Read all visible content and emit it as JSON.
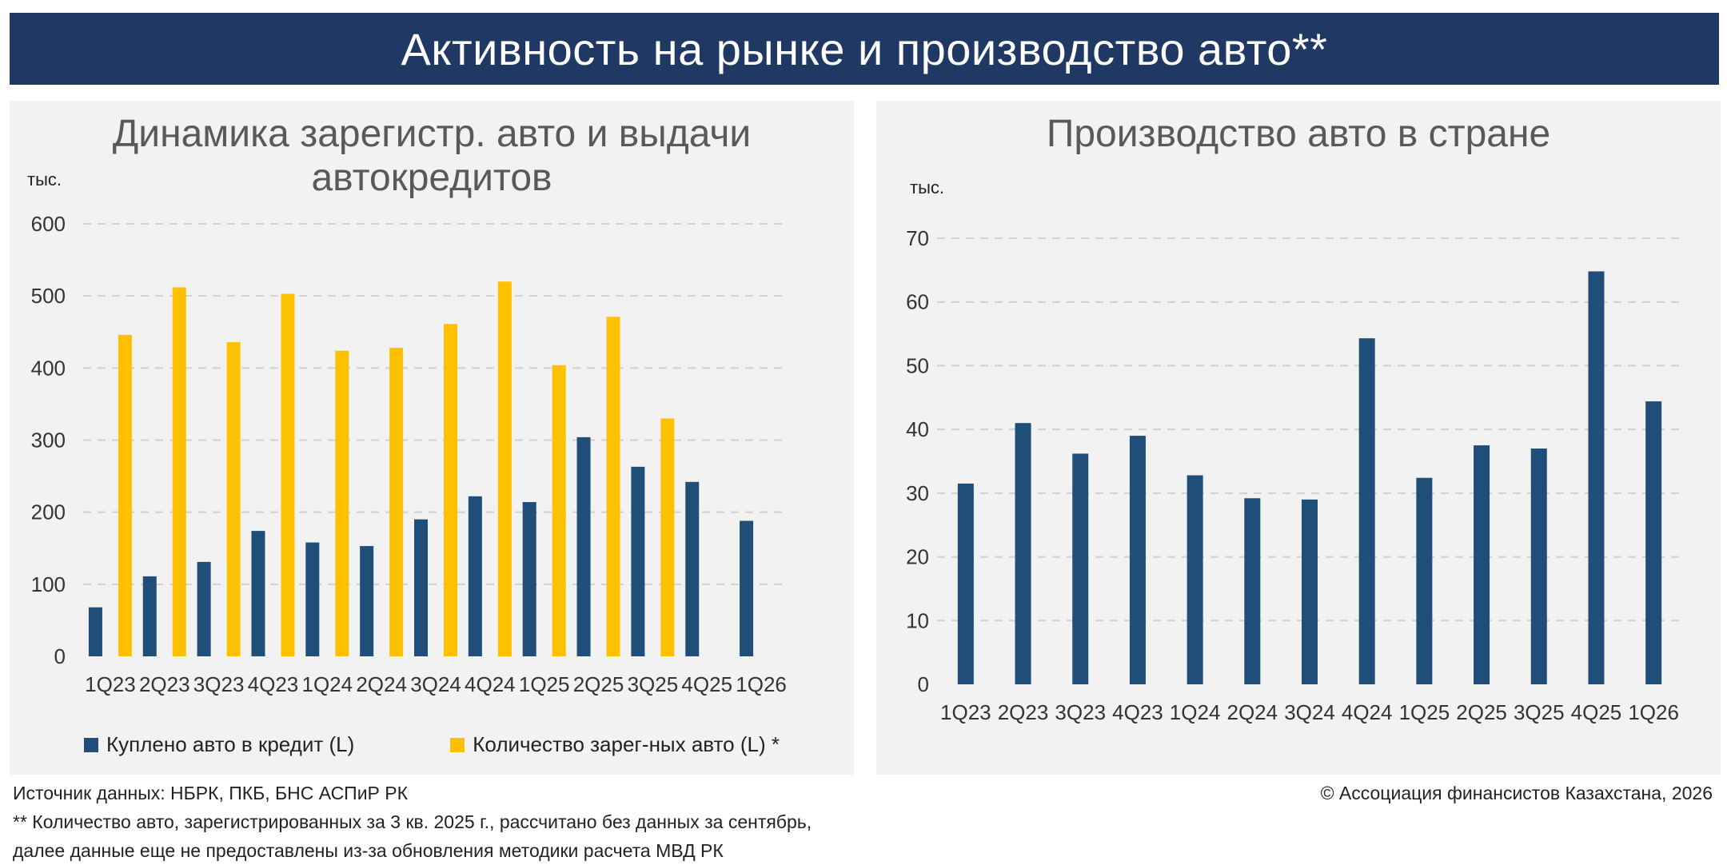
{
  "header": {
    "title": "Активность на рынке и производство авто**"
  },
  "colors": {
    "header_bg": "#1f3864",
    "navy": "#1f4e79",
    "gold": "#ffc000",
    "panel_bg": "#f2f2f2"
  },
  "chart_data": [
    {
      "type": "bar",
      "title": "Динамика зарегистр. авто и выдачи автокредитов",
      "ylabel": "тыс.",
      "ylim": [
        0,
        600
      ],
      "yticks": [
        0,
        100,
        200,
        300,
        400,
        500,
        600
      ],
      "grid": true,
      "legend_position": "bottom",
      "categories": [
        "1Q23",
        "2Q23",
        "3Q23",
        "4Q23",
        "1Q24",
        "2Q24",
        "3Q24",
        "4Q24",
        "1Q25",
        "2Q25",
        "3Q25",
        "4Q25",
        "1Q26"
      ],
      "series": [
        {
          "name": "Куплено авто в кредит (L)",
          "color": "#1f4e79",
          "values": [
            68,
            111,
            131,
            174,
            158,
            153,
            190,
            222,
            214,
            304,
            263,
            242,
            188
          ]
        },
        {
          "name": "Количество зарег-ных авто (L) *",
          "color": "#ffc000",
          "values": [
            446,
            512,
            436,
            503,
            424,
            428,
            461,
            520,
            404,
            471,
            330,
            null,
            null
          ]
        }
      ]
    },
    {
      "type": "bar",
      "title": "Производство авто в стране",
      "ylabel": "тыс.",
      "ylim": [
        0,
        70
      ],
      "yticks": [
        0,
        10,
        20,
        30,
        40,
        50,
        60,
        70
      ],
      "grid": true,
      "categories": [
        "1Q23",
        "2Q23",
        "3Q23",
        "4Q23",
        "1Q24",
        "2Q24",
        "3Q24",
        "4Q24",
        "1Q25",
        "2Q25",
        "3Q25",
        "4Q25",
        "1Q26"
      ],
      "series": [
        {
          "color": "#1f4e79",
          "values": [
            31.5,
            41,
            36.2,
            39,
            32.8,
            29.2,
            29,
            54.3,
            32.4,
            37.5,
            37,
            64.8,
            44.4
          ]
        }
      ]
    }
  ],
  "footer": {
    "source": "Источник данных: НБРК, ПКБ, БНС АСПиР РК",
    "note_line1": "** Количество авто, зарегистрированных за 3 кв. 2025 г., рассчитано без данных за сентябрь,",
    "note_line2": "далее данные еще не предоставлены из-за обновления методики расчета МВД РК",
    "copyright": "© Ассоциация финансистов Казахстана, 2026"
  }
}
